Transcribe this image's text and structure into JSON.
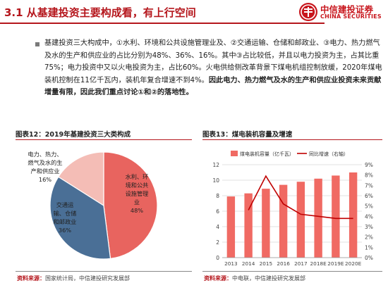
{
  "header": {
    "title": "3.1 从基建投资主要构成看，有上行空间",
    "logo_cn": "中信建投证券",
    "logo_en": "CHINA SECURITIES"
  },
  "body": {
    "text": "基建投资三大构成中，①水利、环境和公共设施管理业及、②交通运输、仓储和邮政业、③电力、热力燃气及水的生产和供应业的占比分别为48%、36%、16%。其中③占比较低，并且以电力投资为主，占其比重75%；电力投资中又以火电投资为主，占比60%。火电供给侧改革背景下煤电机组控制放缓，2020年煤电装机控制在11亿千瓦内，装机年复合增速不到4%。",
    "bold": "因此电力、热力燃气及水的生产和供应业投资未来贡献增量有限，因此我们重点讨论①和②的落地性。"
  },
  "figure12": {
    "title": "图表12：2019年基建投资三大类构成",
    "source_label": "资料来源：",
    "source_text": "国家统计局，中信建投研究发展部"
  },
  "figure13": {
    "title": "图表13：煤电装机容量及增速",
    "source_label": "资料来源：",
    "source_text": "中电联，中信建投研究发展部"
  },
  "chart_data": [
    {
      "type": "pie",
      "title": "图表12：2019年基建投资三大类构成",
      "slices": [
        {
          "label": "水利、环境和公共设施管理业",
          "value": 48,
          "pct": "48%",
          "color": "#e8645f"
        },
        {
          "label": "交通运输、仓储和邮政业",
          "value": 36,
          "pct": "36%",
          "color": "#4a6f96"
        },
        {
          "label": "电力、热力、燃气及水的生产和供应业",
          "value": 16,
          "pct": "16%",
          "color": "#f4bdb6"
        }
      ]
    },
    {
      "type": "bar",
      "title": "图表13：煤电装机容量及增速",
      "categories": [
        "2013",
        "2014",
        "2015",
        "2016",
        "2017",
        "2018E",
        "2019E",
        "2020E"
      ],
      "series": [
        {
          "name": "煤电装机容量（亿千瓦）",
          "type": "bar",
          "axis": "left",
          "color": "#f06a63",
          "values": [
            7.9,
            8.3,
            8.9,
            9.4,
            9.8,
            10.2,
            10.6,
            11.0
          ]
        },
        {
          "name": "同比增速（右轴）",
          "type": "line",
          "axis": "right",
          "color": "#c00000",
          "values": [
            null,
            4.6,
            7.9,
            5.2,
            4.2,
            4.0,
            3.8,
            3.8
          ]
        }
      ],
      "y_left": {
        "min": 0,
        "max": 12,
        "ticks": [
          0,
          2,
          4,
          6,
          8,
          10,
          12
        ]
      },
      "y_right": {
        "min": 0,
        "max": 9,
        "ticks": [
          "0%",
          "1%",
          "2%",
          "3%",
          "4%",
          "5%",
          "6%",
          "7%",
          "8%",
          "9%"
        ]
      },
      "grid": true,
      "legend": "top"
    }
  ]
}
